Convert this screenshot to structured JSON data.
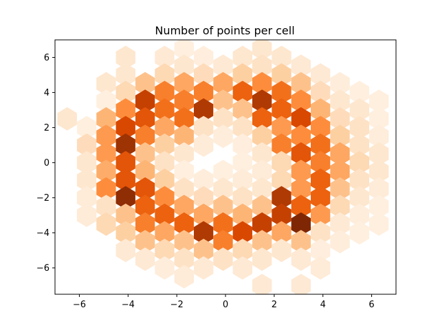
{
  "chart_data": {
    "type": "hexbin",
    "title": "Number of points per cell",
    "xlabel": "",
    "ylabel": "",
    "xlim": [
      -7.0,
      7.0
    ],
    "ylim": [
      -7.5,
      7.0
    ],
    "x_ticks": [
      -6,
      -4,
      -2,
      0,
      2,
      4,
      6
    ],
    "y_ticks": [
      -6,
      -4,
      -2,
      0,
      2,
      4,
      6
    ],
    "grid": false,
    "colormap": "Oranges",
    "color_scale": {
      "min": 0,
      "max": 10
    },
    "hex_cells": [
      {
        "x": -6.5,
        "y": 2.5,
        "count": 1.2
      },
      {
        "x": -5.7,
        "y": 2.0,
        "count": 0.5
      },
      {
        "x": -5.7,
        "y": 1.0,
        "count": 1.8
      },
      {
        "x": -5.7,
        "y": 0.0,
        "count": 1.2
      },
      {
        "x": -5.7,
        "y": -1.0,
        "count": 1.2
      },
      {
        "x": -5.7,
        "y": -2.0,
        "count": 0.8
      },
      {
        "x": -5.7,
        "y": -3.0,
        "count": 0.8
      },
      {
        "x": -4.9,
        "y": 4.5,
        "count": 1.2
      },
      {
        "x": -4.9,
        "y": 3.5,
        "count": 0.5
      },
      {
        "x": -4.9,
        "y": 2.5,
        "count": 3.5
      },
      {
        "x": -4.9,
        "y": 1.5,
        "count": 4.5
      },
      {
        "x": -4.9,
        "y": 0.5,
        "count": 4.5
      },
      {
        "x": -4.9,
        "y": -0.5,
        "count": 3.8
      },
      {
        "x": -4.9,
        "y": -1.5,
        "count": 5.0
      },
      {
        "x": -4.9,
        "y": -2.5,
        "count": 1.5
      },
      {
        "x": -4.9,
        "y": -3.5,
        "count": 2.0
      },
      {
        "x": -4.1,
        "y": 6.0,
        "count": 1.2
      },
      {
        "x": -4.1,
        "y": 5.0,
        "count": 1.2
      },
      {
        "x": -4.1,
        "y": 4.0,
        "count": 2.0
      },
      {
        "x": -4.1,
        "y": 3.0,
        "count": 5.0
      },
      {
        "x": -4.1,
        "y": 2.0,
        "count": 7.5
      },
      {
        "x": -4.1,
        "y": 1.0,
        "count": 9.0
      },
      {
        "x": -4.1,
        "y": 0.0,
        "count": 7.0
      },
      {
        "x": -4.1,
        "y": -1.0,
        "count": 7.0
      },
      {
        "x": -4.1,
        "y": -2.0,
        "count": 9.5
      },
      {
        "x": -4.1,
        "y": -3.0,
        "count": 3.0
      },
      {
        "x": -4.1,
        "y": -4.0,
        "count": 2.5
      },
      {
        "x": -4.1,
        "y": -5.0,
        "count": 1.0
      },
      {
        "x": -3.3,
        "y": 4.5,
        "count": 3.0
      },
      {
        "x": -3.3,
        "y": 3.5,
        "count": 8.0
      },
      {
        "x": -3.3,
        "y": 2.5,
        "count": 7.0
      },
      {
        "x": -3.3,
        "y": 1.5,
        "count": 5.5
      },
      {
        "x": -3.3,
        "y": 0.5,
        "count": 3.0
      },
      {
        "x": -3.3,
        "y": -0.5,
        "count": 3.5
      },
      {
        "x": -3.3,
        "y": -1.5,
        "count": 7.0
      },
      {
        "x": -3.3,
        "y": -2.5,
        "count": 6.5
      },
      {
        "x": -3.3,
        "y": -3.5,
        "count": 5.5
      },
      {
        "x": -3.3,
        "y": -4.5,
        "count": 3.0
      },
      {
        "x": -3.3,
        "y": -5.5,
        "count": 1.0
      },
      {
        "x": -2.5,
        "y": 6.0,
        "count": 1.0
      },
      {
        "x": -2.5,
        "y": 5.0,
        "count": 2.0
      },
      {
        "x": -2.5,
        "y": 4.0,
        "count": 5.5
      },
      {
        "x": -2.5,
        "y": 3.0,
        "count": 6.0
      },
      {
        "x": -2.5,
        "y": 2.0,
        "count": 4.0
      },
      {
        "x": -2.5,
        "y": 1.0,
        "count": 2.5
      },
      {
        "x": -2.5,
        "y": 0.0,
        "count": 1.5
      },
      {
        "x": -2.5,
        "y": -1.0,
        "count": 2.5
      },
      {
        "x": -2.5,
        "y": -2.0,
        "count": 5.0
      },
      {
        "x": -2.5,
        "y": -3.0,
        "count": 6.5
      },
      {
        "x": -2.5,
        "y": -4.0,
        "count": 4.0
      },
      {
        "x": -2.5,
        "y": -5.0,
        "count": 2.0
      },
      {
        "x": -2.5,
        "y": -6.0,
        "count": 0.7
      },
      {
        "x": -1.7,
        "y": 6.5,
        "count": 0.5
      },
      {
        "x": -1.7,
        "y": 5.5,
        "count": 1.2
      },
      {
        "x": -1.7,
        "y": 4.5,
        "count": 4.0
      },
      {
        "x": -1.7,
        "y": 3.5,
        "count": 5.5
      },
      {
        "x": -1.7,
        "y": 2.5,
        "count": 6.0
      },
      {
        "x": -1.7,
        "y": 1.5,
        "count": 3.5
      },
      {
        "x": -1.7,
        "y": 0.5,
        "count": 1.2
      },
      {
        "x": -1.7,
        "y": -0.5,
        "count": 0.5
      },
      {
        "x": -1.7,
        "y": -1.5,
        "count": 1.5
      },
      {
        "x": -1.7,
        "y": -2.5,
        "count": 4.0
      },
      {
        "x": -1.7,
        "y": -3.5,
        "count": 6.5
      },
      {
        "x": -1.7,
        "y": -4.5,
        "count": 3.0
      },
      {
        "x": -1.7,
        "y": -5.5,
        "count": 1.5
      },
      {
        "x": -1.7,
        "y": -6.5,
        "count": 0.8
      },
      {
        "x": -0.9,
        "y": 6.0,
        "count": 0.6
      },
      {
        "x": -0.9,
        "y": 5.0,
        "count": 1.8
      },
      {
        "x": -0.9,
        "y": 4.0,
        "count": 5.5
      },
      {
        "x": -0.9,
        "y": 3.0,
        "count": 8.5
      },
      {
        "x": -0.9,
        "y": 2.0,
        "count": 1.5
      },
      {
        "x": -0.9,
        "y": 1.0,
        "count": 0.8
      },
      {
        "x": -0.9,
        "y": 0.0,
        "count": 0.0
      },
      {
        "x": -0.9,
        "y": -1.0,
        "count": 0.7
      },
      {
        "x": -0.9,
        "y": -2.0,
        "count": 1.8
      },
      {
        "x": -0.9,
        "y": -3.0,
        "count": 4.0
      },
      {
        "x": -0.9,
        "y": -4.0,
        "count": 8.5
      },
      {
        "x": -0.9,
        "y": -5.0,
        "count": 3.0
      },
      {
        "x": -0.9,
        "y": -6.0,
        "count": 1.0
      },
      {
        "x": -0.1,
        "y": 5.5,
        "count": 1.0
      },
      {
        "x": -0.1,
        "y": 4.5,
        "count": 4.0
      },
      {
        "x": -0.1,
        "y": 3.5,
        "count": 3.0
      },
      {
        "x": -0.1,
        "y": 2.5,
        "count": 1.5
      },
      {
        "x": -0.1,
        "y": 1.5,
        "count": 0.7
      },
      {
        "x": -0.1,
        "y": 0.5,
        "count": 0.0
      },
      {
        "x": -0.1,
        "y": -0.5,
        "count": 0.5
      },
      {
        "x": -0.1,
        "y": -1.5,
        "count": 1.2
      },
      {
        "x": -0.1,
        "y": -2.5,
        "count": 3.0
      },
      {
        "x": -0.1,
        "y": -3.5,
        "count": 6.0
      },
      {
        "x": -0.1,
        "y": -4.5,
        "count": 5.5
      },
      {
        "x": -0.1,
        "y": -5.5,
        "count": 1.5
      },
      {
        "x": 0.7,
        "y": 6.0,
        "count": 1.2
      },
      {
        "x": 0.7,
        "y": 5.0,
        "count": 2.5
      },
      {
        "x": 0.7,
        "y": 4.0,
        "count": 6.5
      },
      {
        "x": 0.7,
        "y": 3.0,
        "count": 3.0
      },
      {
        "x": 0.7,
        "y": 2.0,
        "count": 1.5
      },
      {
        "x": 0.7,
        "y": 1.0,
        "count": 0.6
      },
      {
        "x": 0.7,
        "y": 0.0,
        "count": 0.5
      },
      {
        "x": 0.7,
        "y": -1.0,
        "count": 0.8
      },
      {
        "x": 0.7,
        "y": -2.0,
        "count": 1.5
      },
      {
        "x": 0.7,
        "y": -3.0,
        "count": 3.5
      },
      {
        "x": 0.7,
        "y": -4.0,
        "count": 7.5
      },
      {
        "x": 0.7,
        "y": -5.0,
        "count": 2.0
      },
      {
        "x": 0.7,
        "y": -6.0,
        "count": 1.0
      },
      {
        "x": 1.5,
        "y": 6.5,
        "count": 1.2
      },
      {
        "x": 1.5,
        "y": 5.5,
        "count": 1.5
      },
      {
        "x": 1.5,
        "y": 4.5,
        "count": 5.0
      },
      {
        "x": 1.5,
        "y": 3.5,
        "count": 8.5
      },
      {
        "x": 1.5,
        "y": 2.5,
        "count": 6.5
      },
      {
        "x": 1.5,
        "y": 1.5,
        "count": 2.5
      },
      {
        "x": 1.5,
        "y": 0.5,
        "count": 1.2
      },
      {
        "x": 1.5,
        "y": -0.5,
        "count": 0.8
      },
      {
        "x": 1.5,
        "y": -1.5,
        "count": 1.2
      },
      {
        "x": 1.5,
        "y": -2.5,
        "count": 3.0
      },
      {
        "x": 1.5,
        "y": -3.5,
        "count": 8.0
      },
      {
        "x": 1.5,
        "y": -4.5,
        "count": 3.0
      },
      {
        "x": 1.5,
        "y": -5.5,
        "count": 1.2
      },
      {
        "x": 1.5,
        "y": -7.0,
        "count": 1.0
      },
      {
        "x": 2.3,
        "y": 6.0,
        "count": 1.2
      },
      {
        "x": 2.3,
        "y": 5.0,
        "count": 2.5
      },
      {
        "x": 2.3,
        "y": 4.0,
        "count": 6.0
      },
      {
        "x": 2.3,
        "y": 3.0,
        "count": 6.5
      },
      {
        "x": 2.3,
        "y": 2.0,
        "count": 4.5
      },
      {
        "x": 2.3,
        "y": 1.0,
        "count": 5.5
      },
      {
        "x": 2.3,
        "y": 0.0,
        "count": 2.0
      },
      {
        "x": 2.3,
        "y": -1.0,
        "count": 2.0
      },
      {
        "x": 2.3,
        "y": -2.0,
        "count": 8.5
      },
      {
        "x": 2.3,
        "y": -3.0,
        "count": 8.0
      },
      {
        "x": 2.3,
        "y": -4.0,
        "count": 4.0
      },
      {
        "x": 2.3,
        "y": -5.0,
        "count": 1.2
      },
      {
        "x": 3.1,
        "y": 5.5,
        "count": 1.0
      },
      {
        "x": 3.1,
        "y": 4.5,
        "count": 3.0
      },
      {
        "x": 3.1,
        "y": 3.5,
        "count": 5.0
      },
      {
        "x": 3.1,
        "y": 2.5,
        "count": 7.5
      },
      {
        "x": 3.1,
        "y": 1.5,
        "count": 5.0
      },
      {
        "x": 3.1,
        "y": 0.5,
        "count": 7.0
      },
      {
        "x": 3.1,
        "y": -0.5,
        "count": 4.5
      },
      {
        "x": 3.1,
        "y": -1.5,
        "count": 4.5
      },
      {
        "x": 3.1,
        "y": -2.5,
        "count": 6.5
      },
      {
        "x": 3.1,
        "y": -3.5,
        "count": 10.0
      },
      {
        "x": 3.1,
        "y": -4.5,
        "count": 3.0
      },
      {
        "x": 3.1,
        "y": -5.5,
        "count": 1.0
      },
      {
        "x": 3.1,
        "y": -7.0,
        "count": 1.0
      },
      {
        "x": 3.9,
        "y": 5.0,
        "count": 1.0
      },
      {
        "x": 3.9,
        "y": 4.0,
        "count": 1.8
      },
      {
        "x": 3.9,
        "y": 3.0,
        "count": 3.5
      },
      {
        "x": 3.9,
        "y": 2.0,
        "count": 5.0
      },
      {
        "x": 3.9,
        "y": 1.0,
        "count": 6.0
      },
      {
        "x": 3.9,
        "y": 0.0,
        "count": 5.5
      },
      {
        "x": 3.9,
        "y": -1.0,
        "count": 6.5
      },
      {
        "x": 3.9,
        "y": -2.0,
        "count": 6.5
      },
      {
        "x": 3.9,
        "y": -3.0,
        "count": 4.5
      },
      {
        "x": 3.9,
        "y": -4.0,
        "count": 1.5
      },
      {
        "x": 3.9,
        "y": -5.0,
        "count": 0.6
      },
      {
        "x": 3.9,
        "y": -6.0,
        "count": 0.8
      },
      {
        "x": 4.7,
        "y": 4.5,
        "count": 0.7
      },
      {
        "x": 4.7,
        "y": 3.5,
        "count": 1.2
      },
      {
        "x": 4.7,
        "y": 2.5,
        "count": 1.8
      },
      {
        "x": 4.7,
        "y": 1.5,
        "count": 2.5
      },
      {
        "x": 4.7,
        "y": 0.5,
        "count": 4.0
      },
      {
        "x": 4.7,
        "y": -0.5,
        "count": 4.0
      },
      {
        "x": 4.7,
        "y": -1.5,
        "count": 3.0
      },
      {
        "x": 4.7,
        "y": -2.5,
        "count": 2.0
      },
      {
        "x": 4.7,
        "y": -3.5,
        "count": 1.0
      },
      {
        "x": 4.7,
        "y": -4.5,
        "count": 0.7
      },
      {
        "x": 5.5,
        "y": 4.0,
        "count": 0.5
      },
      {
        "x": 5.5,
        "y": 3.0,
        "count": 1.2
      },
      {
        "x": 5.5,
        "y": 2.0,
        "count": 1.5
      },
      {
        "x": 5.5,
        "y": 1.0,
        "count": 1.5
      },
      {
        "x": 5.5,
        "y": 0.0,
        "count": 2.0
      },
      {
        "x": 5.5,
        "y": -1.0,
        "count": 1.5
      },
      {
        "x": 5.5,
        "y": -2.0,
        "count": 1.2
      },
      {
        "x": 5.5,
        "y": -3.0,
        "count": 0.7
      },
      {
        "x": 5.5,
        "y": -4.0,
        "count": 0.5
      },
      {
        "x": 6.3,
        "y": 3.5,
        "count": 0.5
      },
      {
        "x": 6.3,
        "y": 2.5,
        "count": 0.5
      },
      {
        "x": 6.3,
        "y": 1.5,
        "count": 0.7
      },
      {
        "x": 6.3,
        "y": 0.5,
        "count": 1.2
      },
      {
        "x": 6.3,
        "y": -0.5,
        "count": 1.2
      },
      {
        "x": 6.3,
        "y": -1.5,
        "count": 0.8
      },
      {
        "x": 6.3,
        "y": -2.5,
        "count": 0.5
      },
      {
        "x": 6.3,
        "y": -3.5,
        "count": 0.5
      }
    ]
  }
}
